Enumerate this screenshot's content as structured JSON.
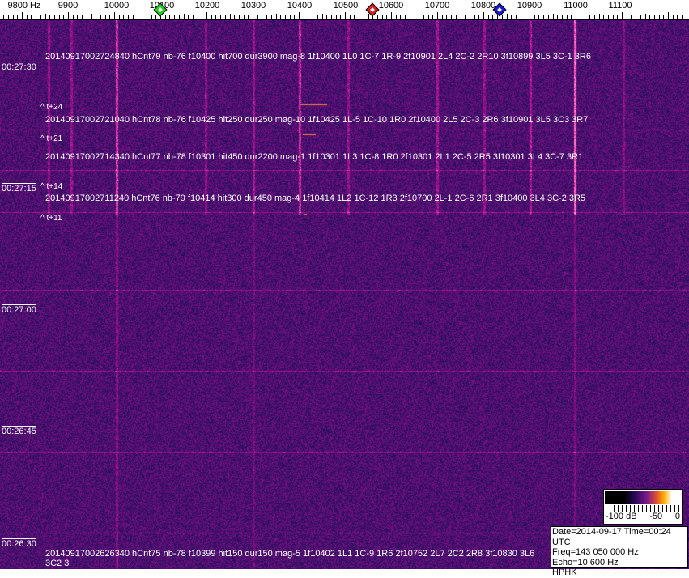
{
  "frequency_axis": {
    "labels": [
      "9800 Hz",
      "9900",
      "10000",
      "10100",
      "10200",
      "10300",
      "10400",
      "10500",
      "10600",
      "10700",
      "10800",
      "10900",
      "11000",
      "11100"
    ],
    "label_freqs": [
      9800,
      9900,
      10000,
      10100,
      10200,
      10300,
      10400,
      10500,
      10600,
      10700,
      10800,
      10900,
      11000,
      11100
    ],
    "markers": [
      {
        "name": "green-marker",
        "freq": 10100,
        "color": "#22cc22"
      },
      {
        "name": "red-marker",
        "freq": 10560,
        "color": "#cc2222"
      },
      {
        "name": "blue-marker",
        "freq": 10835,
        "color": "#1a1acc"
      }
    ]
  },
  "time_labels": [
    "00:27:30",
    "00:27:15",
    "00:27:00",
    "00:26:45",
    "00:26:30"
  ],
  "detections": [
    "20140917002724840 hCnt79 nb-76 f10400 hit700 dur3900 mag-8 1f10400 1L0 1C-7 1R-9 2f10901 2L4 2C-2 2R10 3f10899 3L5 3C-1 3R6",
    "20140917002721040 hCnt78 nb-76 f10425 hit250 dur250 mag-10 1f10425 1L-5 1C-10 1R0 2f10400 2L5 2C-3 2R6 3f10901 3L5 3C3 3R7",
    "20140917002714340 hCnt77 nb-78 f10301 hit450 dur2200 mag-1 1f10301 1L3 1C-8 1R0 2f10301 2L1 2C-5 2R5 3f10301 3L4 3C-7 3R1",
    "20140917002711240 hCnt76 nb-79 f10414 hit300 dur450 mag-4 1f10414 1L2 1C-12 1R3 2f10700 2L-1 2C-6 2R1 3f10400 3L4 3C-2 3R5",
    "20140917002626340 hCnt75 nb-78 f10399 hit150 dur150 mag-5 1f10402 1L1 1C-9 1R6 2f10752 2L7 2C2 2R8 3f10830 3L6 3C2 3"
  ],
  "time_offsets": [
    "^ t+24",
    "^ t+21",
    "^ t+14",
    "^ t+11"
  ],
  "colorbar": {
    "labels": [
      "-100 dB",
      "-50",
      "0"
    ]
  },
  "info": {
    "date": "Date=2014-09-17 Time=00:24 UTC",
    "freq": "Freq=143 050 000 Hz",
    "echo": "Echo=10 600 Hz",
    "station": "HPHK"
  },
  "colors": {
    "background": "#1e1a6e",
    "signal": "#c85a8a",
    "hot": "#ffb050"
  }
}
